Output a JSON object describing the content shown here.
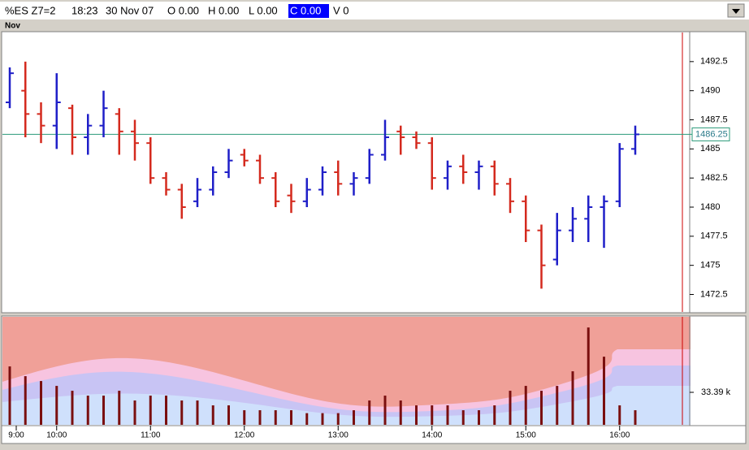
{
  "header": {
    "symbol": "%ES Z7=2",
    "time": "18:23",
    "date": "30 Nov 07",
    "open": "O 0.00",
    "high": "H 0.00",
    "low": "L 0.00",
    "close": "C 0.00",
    "volume": "V 0",
    "panel_label": "Nov"
  },
  "chart_data": [
    {
      "type": "ohlc",
      "up_color": "#1f1fc8",
      "down_color": "#d42a1e",
      "open": [
        1489,
        1490,
        1488,
        1487,
        1488.5,
        1486,
        1487,
        1488,
        1486.5,
        1485.5,
        1482.5,
        1481.5,
        1480.5,
        1481.5,
        1483,
        1484.5,
        1484,
        1482.5,
        1481,
        1480.5,
        1481.5,
        1483,
        1482,
        1482.5,
        1484.5,
        1486.5,
        1486,
        1485.5,
        1482.5,
        1483.5,
        1483,
        1483.5,
        1482,
        1480.5,
        1478,
        1475.5,
        1478,
        1479,
        1480,
        1480.5,
        1485
      ],
      "high": [
        1492,
        1492.5,
        1489,
        1491.5,
        1488.8,
        1488,
        1490,
        1488.5,
        1487.5,
        1486,
        1483,
        1482,
        1482.5,
        1483.5,
        1485,
        1485,
        1484.5,
        1483,
        1482,
        1482.5,
        1483.5,
        1484,
        1483,
        1485,
        1487.5,
        1487,
        1486.5,
        1486,
        1484,
        1484.5,
        1484,
        1484,
        1482.5,
        1481,
        1478.5,
        1479.5,
        1480,
        1481,
        1481,
        1485.5,
        1487
      ],
      "low": [
        1488.5,
        1486,
        1485.5,
        1485,
        1484.5,
        1484.5,
        1486,
        1484.5,
        1484,
        1482,
        1481,
        1479,
        1480,
        1481,
        1482.5,
        1483.5,
        1482,
        1480,
        1479.5,
        1480,
        1481,
        1481,
        1481,
        1482,
        1484,
        1484.5,
        1485,
        1481.5,
        1481.5,
        1482,
        1481.5,
        1481,
        1479.5,
        1477,
        1473,
        1475,
        1477,
        1477,
        1476.5,
        1480,
        1484.5
      ],
      "close": [
        1491.5,
        1488,
        1487,
        1489,
        1486,
        1487,
        1488.5,
        1486.5,
        1485.5,
        1482.5,
        1481.5,
        1480,
        1481.5,
        1483,
        1484,
        1484,
        1482.5,
        1480.5,
        1480.5,
        1481.5,
        1483,
        1482,
        1482.5,
        1484.5,
        1486,
        1486,
        1485.5,
        1482.5,
        1483.5,
        1483,
        1483.5,
        1482,
        1480.5,
        1478,
        1475,
        1478,
        1479,
        1480,
        1480.5,
        1485,
        1486.25
      ],
      "ylim": [
        1471,
        1495
      ],
      "yticks": [
        1472.5,
        1475,
        1477.5,
        1480,
        1482.5,
        1485,
        1487.5,
        1490,
        1492.5
      ],
      "last_price": 1486.25
    },
    {
      "type": "bar",
      "color": "#7a0f0f",
      "categories": [
        "9:00",
        null,
        null,
        "10:00",
        null,
        null,
        null,
        null,
        null,
        "11:00",
        null,
        null,
        null,
        null,
        null,
        "12:00",
        null,
        null,
        null,
        null,
        null,
        "13:00",
        null,
        null,
        null,
        null,
        null,
        "14:00",
        null,
        null,
        null,
        null,
        null,
        "15:00",
        null,
        null,
        null,
        null,
        null,
        "16:00",
        null
      ],
      "values": [
        60,
        50,
        45,
        40,
        35,
        30,
        30,
        35,
        25,
        30,
        30,
        25,
        25,
        20,
        20,
        15,
        15,
        15,
        15,
        12,
        12,
        12,
        15,
        25,
        30,
        25,
        20,
        20,
        20,
        15,
        15,
        20,
        35,
        40,
        35,
        40,
        55,
        100,
        70,
        20,
        15
      ],
      "ylim": [
        0,
        111
      ],
      "yticks": [
        {
          "value": 33.39,
          "label": "33.39 k"
        }
      ]
    }
  ]
}
